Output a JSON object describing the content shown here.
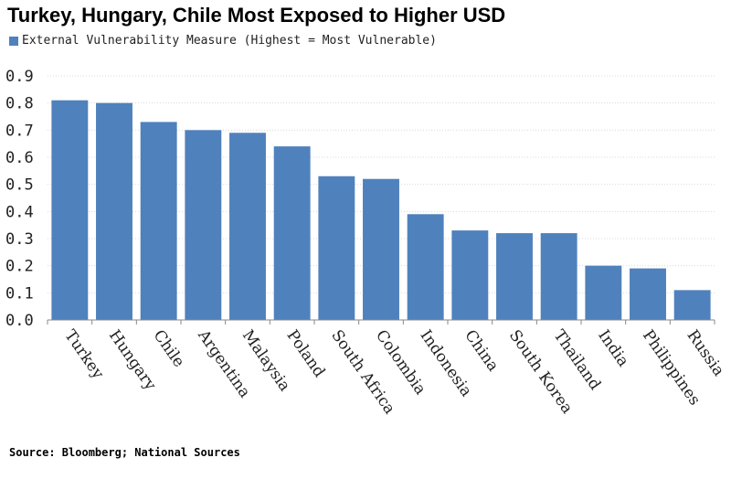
{
  "colors": {
    "bar": "#4f81bd",
    "grid": "#d9d9d9",
    "axis": "#888888"
  },
  "chart_data": {
    "type": "bar",
    "title": "Turkey, Hungary, Chile Most Exposed to Higher USD",
    "legend": "External Vulnerability Measure (Highest = Most Vulnerable)",
    "source": "Source: Bloomberg; National Sources",
    "categories": [
      "Turkey",
      "Hungary",
      "Chile",
      "Argentina",
      "Malaysia",
      "Poland",
      "South Africa",
      "Colombia",
      "Indonesia",
      "China",
      "South Korea",
      "Thailand",
      "India",
      "Philippines",
      "Russia"
    ],
    "series": [
      {
        "name": "External Vulnerability Measure (Highest = Most Vulnerable)",
        "values": [
          0.81,
          0.8,
          0.73,
          0.7,
          0.69,
          0.64,
          0.53,
          0.52,
          0.39,
          0.33,
          0.32,
          0.32,
          0.2,
          0.19,
          0.11
        ]
      }
    ],
    "yticks": [
      "0.0",
      "0.1",
      "0.2",
      "0.3",
      "0.4",
      "0.5",
      "0.6",
      "0.7",
      "0.8",
      "0.9"
    ],
    "ylim": [
      0,
      0.9
    ],
    "grid": true,
    "legend_position": "top-left"
  }
}
